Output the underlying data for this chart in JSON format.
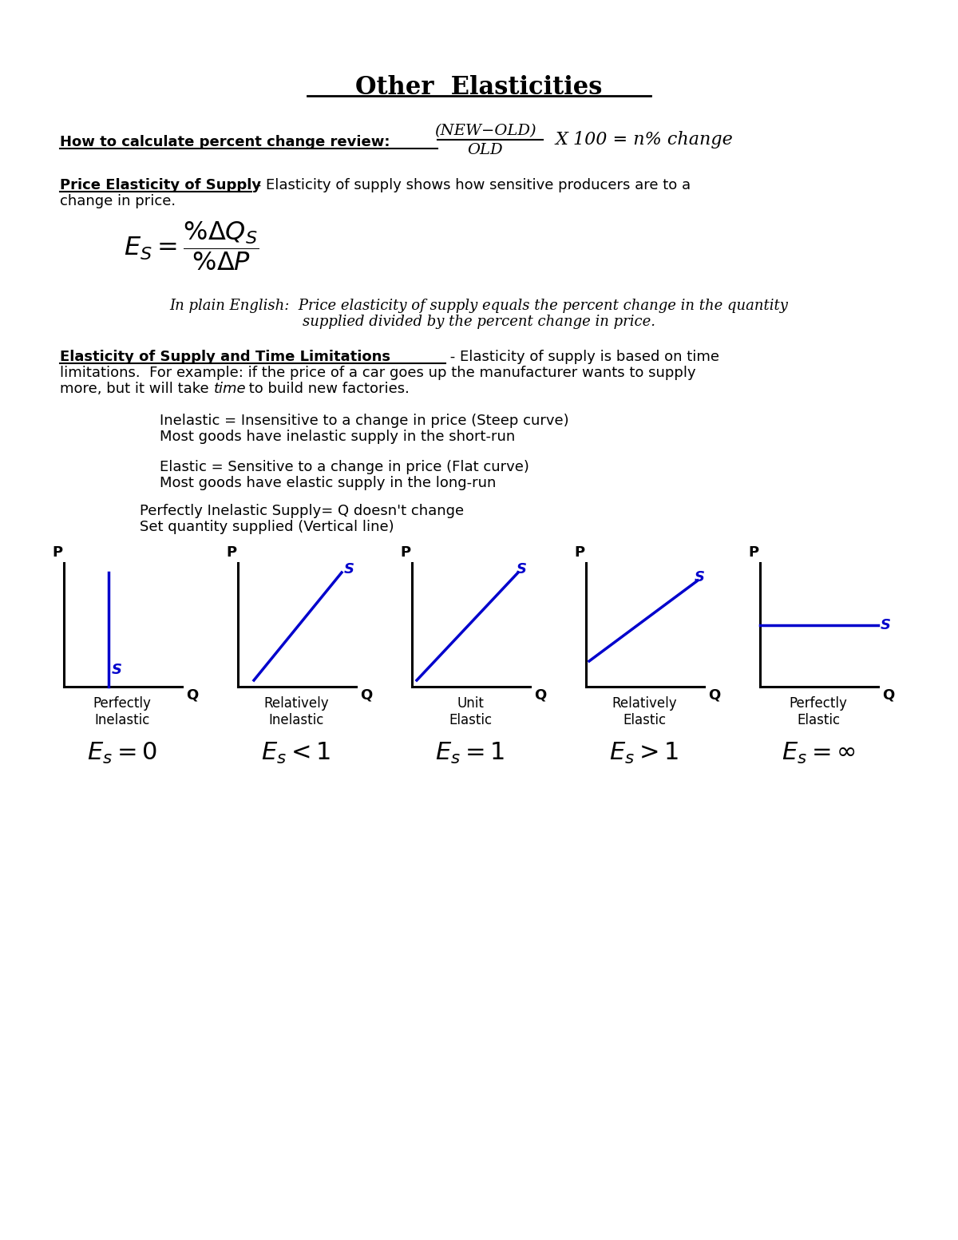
{
  "title": "Other  Elasticities",
  "bg_color": "#ffffff",
  "text_color": "#000000",
  "blue_color": "#0000cc",
  "section1_label": "How to calculate percent change review:",
  "section2_label": "Price Elasticity of Supply",
  "section2_desc": " - Elasticity of supply shows how sensitive producers are to a",
  "section2_desc2": "change in price.",
  "plain_english_line1": "In plain English:  Price elasticity of supply equals the percent change in the quantity",
  "plain_english_line2": "supplied divided by the percent change in price.",
  "section3_label": "Elasticity of Supply and Time Limitations",
  "section3_desc_right": " - Elasticity of supply is based on time",
  "section3_line2": "limitations.  For example: if the price of a car goes up the manufacturer wants to supply",
  "section3_line3a": "more, but it will take ",
  "section3_line3b": "time",
  "section3_line3c": " to build new factories.",
  "bullet1_line1": "Inelastic = Insensitive to a change in price (Steep curve)",
  "bullet1_line2": "Most goods have inelastic supply in the short-run",
  "bullet2_line1": "Elastic = Sensitive to a change in price (Flat curve)",
  "bullet2_line2": "Most goods have elastic supply in the long-run",
  "bullet3_line1": "Perfectly Inelastic Supply= Q doesn't change",
  "bullet3_line2": "Set quantity supplied (Vertical line)",
  "graph_labels": [
    "Perfectly\nInelastic",
    "Relatively\nInelastic",
    "Unit\nElastic",
    "Relatively\nElastic",
    "Perfectly\nElastic"
  ],
  "es_labels": [
    "$E_s = 0$",
    "$E_s < 1$",
    "$E_s = 1$",
    "$E_s > 1$",
    "$E_s = \\infty$"
  ],
  "curve_types": [
    "perfectly_inelastic",
    "relatively_inelastic",
    "unit_elastic",
    "relatively_elastic",
    "perfectly_elastic"
  ]
}
